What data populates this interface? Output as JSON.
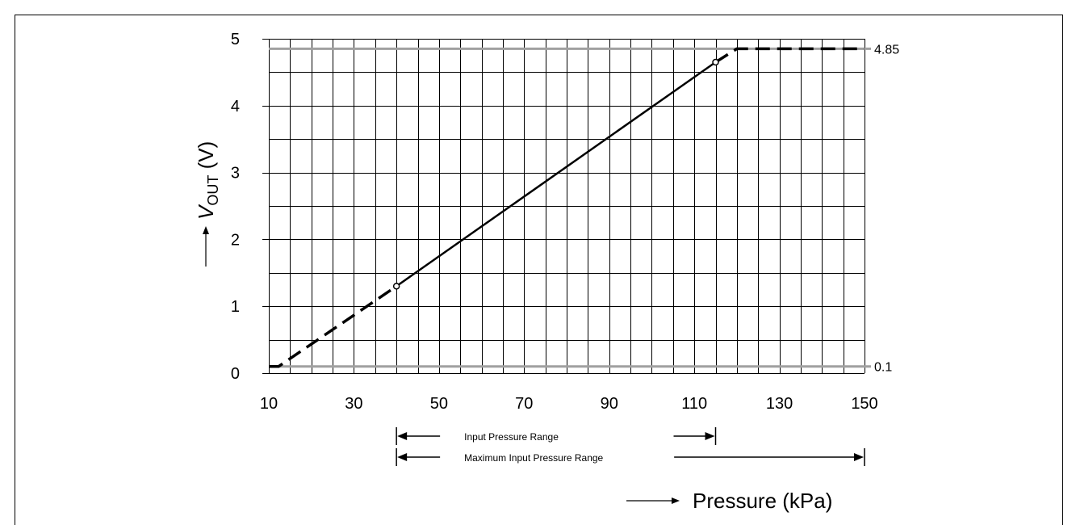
{
  "chart_data": {
    "type": "line",
    "xlabel": "Pressure (kPa)",
    "ylabel": {
      "main": "V",
      "sub": "OUT",
      "unit": " (V)"
    },
    "xlim": [
      10,
      150
    ],
    "ylim": [
      0,
      5
    ],
    "xticks": [
      "10",
      "30",
      "50",
      "70",
      "90",
      "110",
      "130",
      "150"
    ],
    "yticks": [
      "0",
      "1",
      "2",
      "3",
      "4",
      "5"
    ],
    "grid": true,
    "reference_lines": [
      {
        "y": 4.85,
        "label": "4.85",
        "color": "#a0a0a0"
      },
      {
        "y": 0.1,
        "label": "0.1",
        "color": "#a0a0a0"
      }
    ],
    "series": [
      {
        "style": "dashed",
        "x": [
          10,
          12.3,
          40
        ],
        "y": [
          0.1,
          0.1,
          1.3
        ]
      },
      {
        "style": "solid",
        "x": [
          40,
          115
        ],
        "y": [
          1.3,
          4.65
        ]
      },
      {
        "style": "dashed",
        "x": [
          115,
          120,
          150
        ],
        "y": [
          4.65,
          4.85,
          4.85
        ]
      }
    ],
    "markers": [
      {
        "x": 40,
        "y": 1.3
      },
      {
        "x": 115,
        "y": 4.65
      }
    ],
    "ranges": [
      {
        "label": "Input Pressure Range",
        "from": 40,
        "to": 115
      },
      {
        "label": "Maximum Input Pressure Range",
        "from": 40,
        "to": 150
      }
    ]
  }
}
